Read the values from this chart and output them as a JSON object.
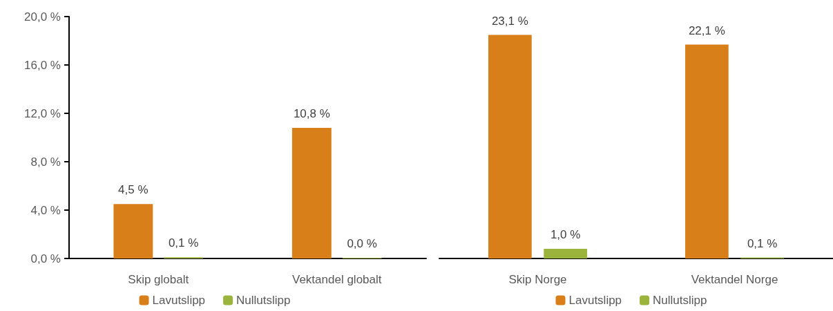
{
  "chart_data": [
    {
      "type": "bar",
      "categories": [
        "Skip globalt",
        "Vektandel globalt"
      ],
      "series": [
        {
          "name": "Lavutslipp",
          "color": "#d97f1a",
          "values": [
            4.5,
            10.8
          ],
          "value_labels": [
            "4,5 %",
            "10,8 %"
          ]
        },
        {
          "name": "Nullutslipp",
          "color": "#9bb53c",
          "values": [
            0.1,
            0.0
          ],
          "value_labels": [
            "0,1 %",
            "0,0 %"
          ]
        }
      ],
      "ylim": [
        0,
        20
      ],
      "yticks": [
        {
          "value": 0,
          "label": "0,0 %"
        },
        {
          "value": 4,
          "label": "4,0 %"
        },
        {
          "value": 8,
          "label": "8,0 %"
        },
        {
          "value": 12,
          "label": "12,0 %"
        },
        {
          "value": 16,
          "label": "16,0 %"
        },
        {
          "value": 20,
          "label": "20,0 %"
        }
      ],
      "grid": false,
      "legend": "bottom"
    },
    {
      "type": "bar",
      "categories": [
        "Skip Norge",
        "Vektandel Norge"
      ],
      "series": [
        {
          "name": "Lavutslipp",
          "color": "#d97f1a",
          "values": [
            23.1,
            22.1
          ],
          "value_labels": [
            "23,1 %",
            "22,1 %"
          ]
        },
        {
          "name": "Nullutslipp",
          "color": "#9bb53c",
          "values": [
            1.0,
            0.1
          ],
          "value_labels": [
            "1,0 %",
            "0,1 %"
          ]
        }
      ],
      "tick_labels": "x",
      "grid": false,
      "legend": "bottom"
    }
  ]
}
